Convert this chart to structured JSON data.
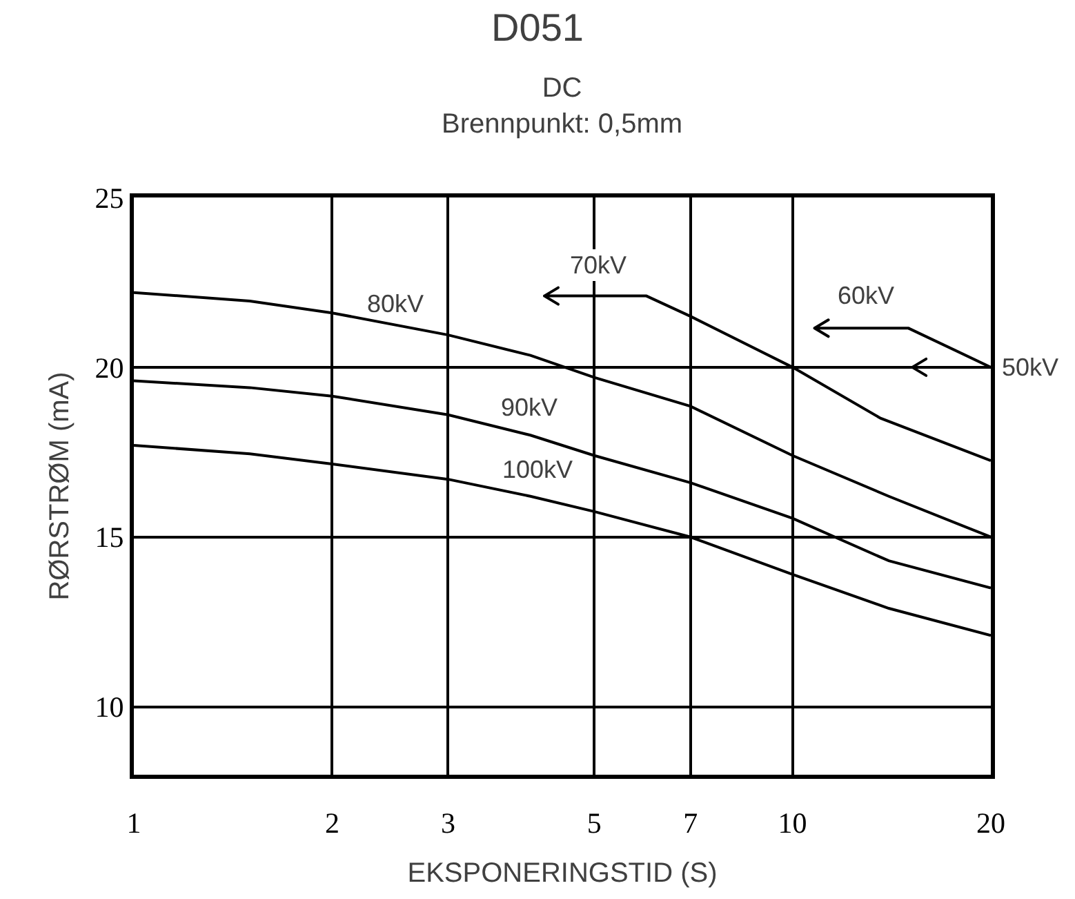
{
  "chart_data": {
    "type": "line",
    "title": "D051",
    "subtitle": "DC\nBrennpunkt: 0,5mm",
    "xlabel": "EKSPONERINGSTID (S)",
    "ylabel": "RØRSTRØM (mA)",
    "log": "x",
    "grid": true,
    "legend": false,
    "marker": "none",
    "line_style": "solid",
    "xlim": [
      1,
      20
    ],
    "xticks": [
      1,
      2,
      3,
      5,
      7,
      10,
      20
    ],
    "ylim": [
      8,
      25
    ],
    "yticks": [
      10,
      15,
      20,
      25
    ],
    "series": [
      {
        "name": "80kV",
        "color": "#000000",
        "x": [
          1,
          1.5,
          2,
          3,
          4,
          5,
          7,
          10,
          14,
          20
        ],
        "values": [
          22.2,
          21.95,
          21.6,
          20.95,
          20.35,
          19.7,
          18.85,
          17.4,
          16.2,
          15.0
        ]
      },
      {
        "name": "90kV",
        "color": "#000000",
        "x": [
          1,
          1.5,
          2,
          3,
          4,
          5,
          7,
          10,
          14,
          20
        ],
        "values": [
          19.6,
          19.4,
          19.15,
          18.6,
          18.0,
          17.4,
          16.6,
          15.55,
          14.3,
          13.5
        ]
      },
      {
        "name": "100kV",
        "color": "#000000",
        "x": [
          1,
          1.5,
          2,
          3,
          4,
          5,
          7,
          10,
          14,
          20
        ],
        "values": [
          17.7,
          17.45,
          17.15,
          16.7,
          16.2,
          15.75,
          15.0,
          13.9,
          12.9,
          12.1
        ]
      },
      {
        "name": "70kV",
        "color": "#000000",
        "x": [
          6,
          7,
          10,
          13.6,
          20
        ],
        "values": [
          22.1,
          21.5,
          20.0,
          18.5,
          17.25
        ]
      },
      {
        "name": "60kV",
        "color": "#000000",
        "x": [
          15,
          20
        ],
        "values": [
          21.15,
          20.0
        ]
      }
    ],
    "annotations": [
      {
        "text": "50kV",
        "x": 20,
        "y": 20
      }
    ]
  }
}
